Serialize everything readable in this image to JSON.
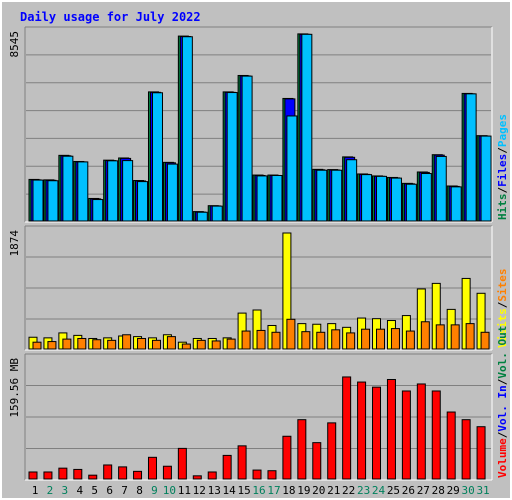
{
  "chart_data": {
    "type": "bar",
    "title": "Daily usage for July 2022",
    "categories": [
      "1",
      "2",
      "3",
      "4",
      "5",
      "6",
      "7",
      "8",
      "9",
      "10",
      "11",
      "12",
      "13",
      "14",
      "15",
      "16",
      "17",
      "18",
      "19",
      "20",
      "21",
      "22",
      "23",
      "24",
      "25",
      "26",
      "27",
      "28",
      "29",
      "30",
      "31"
    ],
    "weekend_days": [
      2,
      3,
      9,
      10,
      16,
      17,
      23,
      24,
      30,
      31
    ],
    "colors": {
      "hits": "#008040",
      "files": "#0000ff",
      "pages": "#00c0ff",
      "visits": "#ffff00",
      "sites": "#ff8000",
      "kbytes": "#ff0000",
      "weekend_label": "#00805c",
      "weekday_label": "#000000"
    },
    "panels": [
      {
        "id": "hits_files_pages",
        "ylabel": "8545",
        "ymax": 8545,
        "legend": [
          {
            "label": "Hits",
            "color": "#008040"
          },
          {
            "label": "/",
            "color": "#000000"
          },
          {
            "label": "Files",
            "color": "#0000ff"
          },
          {
            "label": "/",
            "color": "#000000"
          },
          {
            "label": "Pages",
            "color": "#00c0ff"
          }
        ],
        "series": [
          {
            "name": "Hits",
            "color": "#008040",
            "values": [
              1900,
              1880,
              3000,
              2720,
              1030,
              2780,
              2880,
              1850,
              5900,
              2680,
              8450,
              430,
              700,
              5900,
              6650,
              2100,
              2100,
              5600,
              8550,
              2360,
              2350,
              2930,
              2150,
              2060,
              1990,
              1720,
              2240,
              3030,
              1600,
              5830,
              3900
            ]
          },
          {
            "name": "Files",
            "color": "#0000ff",
            "values": [
              1880,
              1860,
              2980,
              2700,
              1010,
              2760,
              2860,
              1830,
              5880,
              2660,
              8430,
              410,
              690,
              5880,
              6630,
              2080,
              2080,
              5580,
              8530,
              2340,
              2330,
              2910,
              2130,
              2040,
              1970,
              1700,
              2220,
              3010,
              1580,
              5810,
              3880
            ]
          },
          {
            "name": "Pages",
            "color": "#00c0ff",
            "values": [
              1870,
              1840,
              2960,
              2700,
              980,
              2750,
              2760,
              1800,
              5860,
              2600,
              8420,
              400,
              680,
              5870,
              6620,
              2060,
              2080,
              4800,
              8530,
              2320,
              2320,
              2800,
              2120,
              2040,
              1960,
              1680,
              2170,
              2950,
              1560,
              5810,
              3880
            ]
          }
        ]
      },
      {
        "id": "visits_sites",
        "ylabel": "1874",
        "ymax": 1874,
        "legend": [
          {
            "label": "Visits",
            "color": "#ffff00"
          },
          {
            "label": "/",
            "color": "#000000"
          },
          {
            "label": "Sites",
            "color": "#ff8000"
          }
        ],
        "series": [
          {
            "name": "Visits",
            "color": "#ffff00",
            "values": [
              190,
              180,
              260,
              220,
              170,
              180,
              210,
              200,
              180,
              230,
              110,
              170,
              170,
              180,
              580,
              630,
              380,
              1874,
              410,
              400,
              410,
              350,
              500,
              490,
              460,
              540,
              970,
              1060,
              640,
              1140,
              900
            ]
          },
          {
            "name": "Sites",
            "color": "#ff8000",
            "values": [
              110,
              120,
              160,
              170,
              150,
              140,
              230,
              170,
              140,
              200,
              80,
              140,
              130,
              160,
              290,
              300,
              270,
              480,
              280,
              270,
              310,
              260,
              320,
              320,
              330,
              290,
              440,
              390,
              390,
              410,
              270
            ]
          }
        ]
      },
      {
        "id": "kbytes",
        "ylabel": "159.56 MB",
        "ymax": 185,
        "legend": [
          {
            "label": "Volume",
            "color": "#ff0000"
          },
          {
            "label": "/",
            "color": "#000000"
          },
          {
            "label": "Vol. In",
            "color": "#0000ff"
          },
          {
            "label": "/",
            "color": "#000000"
          },
          {
            "label": "Vol. Out",
            "color": "#008040"
          }
        ],
        "series": [
          {
            "name": "Volume",
            "color": "#ff0000",
            "values": [
              11,
              11,
              17,
              15,
              6,
              22,
              19,
              12,
              34,
              20,
              48,
              5,
              11,
              37,
              52,
              14,
              13,
              67,
              93,
              57,
              88,
              160,
              152,
              144,
              156,
              138,
              149,
              138,
              105,
              93,
              82
            ]
          }
        ]
      }
    ]
  }
}
